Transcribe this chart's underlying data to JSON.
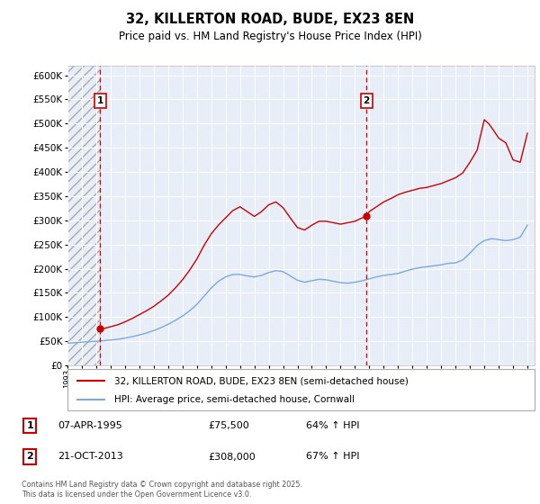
{
  "title": "32, KILLERTON ROAD, BUDE, EX23 8EN",
  "subtitle": "Price paid vs. HM Land Registry's House Price Index (HPI)",
  "ylim": [
    0,
    620000
  ],
  "yticks": [
    0,
    50000,
    100000,
    150000,
    200000,
    250000,
    300000,
    350000,
    400000,
    450000,
    500000,
    550000,
    600000
  ],
  "xlim_start": 1993.0,
  "xlim_end": 2025.5,
  "point1_x": 1995.27,
  "point1_y": 75500,
  "point1_label": "1",
  "point2_x": 2013.8,
  "point2_y": 308000,
  "point2_label": "2",
  "legend_line1": "32, KILLERTON ROAD, BUDE, EX23 8EN (semi-detached house)",
  "legend_line2": "HPI: Average price, semi-detached house, Cornwall",
  "footer": "Contains HM Land Registry data © Crown copyright and database right 2025.\nThis data is licensed under the Open Government Licence v3.0.",
  "red_line_color": "#cc0000",
  "blue_line_color": "#7aaadd",
  "background_color": "#e8eef8",
  "grid_color": "#ffffff",
  "marker_box_color": "#cc0000",
  "years_hpi": [
    1993.0,
    1993.5,
    1994.0,
    1994.5,
    1995.0,
    1995.5,
    1996.0,
    1996.5,
    1997.0,
    1997.5,
    1998.0,
    1998.5,
    1999.0,
    1999.5,
    2000.0,
    2000.5,
    2001.0,
    2001.5,
    2002.0,
    2002.5,
    2003.0,
    2003.5,
    2004.0,
    2004.5,
    2005.0,
    2005.5,
    2006.0,
    2006.5,
    2007.0,
    2007.5,
    2008.0,
    2008.5,
    2009.0,
    2009.5,
    2010.0,
    2010.5,
    2011.0,
    2011.5,
    2012.0,
    2012.5,
    2013.0,
    2013.5,
    2014.0,
    2014.5,
    2015.0,
    2015.5,
    2016.0,
    2016.5,
    2017.0,
    2017.5,
    2018.0,
    2018.5,
    2019.0,
    2019.5,
    2020.0,
    2020.5,
    2021.0,
    2021.5,
    2022.0,
    2022.5,
    2023.0,
    2023.5,
    2024.0,
    2024.5,
    2025.0
  ],
  "hpi_values": [
    46000,
    47000,
    48000,
    49000,
    50000,
    51000,
    52500,
    54000,
    56500,
    59500,
    63000,
    67000,
    72000,
    78000,
    85000,
    93000,
    102000,
    113000,
    126000,
    143000,
    160000,
    174000,
    183000,
    188000,
    188000,
    185000,
    183000,
    186000,
    192000,
    196000,
    194000,
    185000,
    176000,
    172000,
    175000,
    178000,
    177000,
    174000,
    171000,
    170000,
    172000,
    175000,
    179000,
    183000,
    186000,
    188000,
    190000,
    195000,
    199000,
    202000,
    204000,
    206000,
    208000,
    211000,
    212000,
    218000,
    232000,
    248000,
    258000,
    262000,
    260000,
    258000,
    260000,
    265000,
    290000
  ],
  "years_prop": [
    1995.27,
    1995.5,
    1996.0,
    1996.5,
    1997.0,
    1997.5,
    1998.0,
    1998.5,
    1999.0,
    1999.5,
    2000.0,
    2000.5,
    2001.0,
    2001.5,
    2002.0,
    2002.5,
    2003.0,
    2003.5,
    2004.0,
    2004.5,
    2005.0,
    2005.5,
    2006.0,
    2006.5,
    2007.0,
    2007.5,
    2008.0,
    2008.5,
    2009.0,
    2009.5,
    2010.0,
    2010.5,
    2011.0,
    2011.5,
    2012.0,
    2012.5,
    2013.0,
    2013.5,
    2013.8,
    2014.0,
    2014.5,
    2015.0,
    2015.5,
    2016.0,
    2016.5,
    2017.0,
    2017.5,
    2018.0,
    2018.5,
    2019.0,
    2019.5,
    2020.0,
    2020.5,
    2021.0,
    2021.5,
    2022.0,
    2022.3,
    2022.6,
    2023.0,
    2023.5,
    2024.0,
    2024.5,
    2025.0
  ],
  "prop_values": [
    75500,
    76000,
    80000,
    84000,
    90000,
    97000,
    105000,
    113000,
    122000,
    133000,
    145000,
    160000,
    177000,
    197000,
    220000,
    248000,
    272000,
    290000,
    305000,
    320000,
    328000,
    318000,
    308000,
    318000,
    332000,
    338000,
    326000,
    305000,
    285000,
    280000,
    290000,
    298000,
    298000,
    295000,
    292000,
    295000,
    298000,
    305000,
    308000,
    318000,
    328000,
    338000,
    345000,
    353000,
    358000,
    362000,
    366000,
    368000,
    372000,
    376000,
    382000,
    388000,
    398000,
    420000,
    445000,
    508000,
    500000,
    488000,
    470000,
    460000,
    425000,
    420000,
    480000
  ]
}
